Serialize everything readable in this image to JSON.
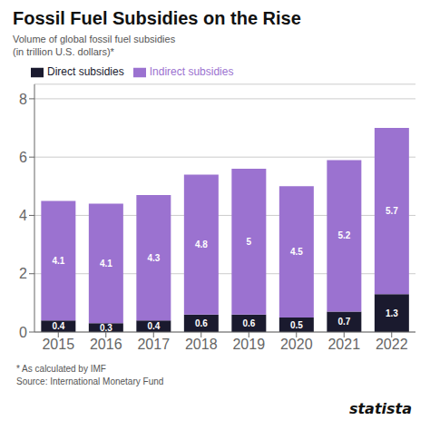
{
  "chart_data": {
    "type": "bar",
    "title": "Fossil Fuel Subsidies on the Rise",
    "subtitle": "Volume of global fossil fuel subsidies\n(in trillion U.S. dollars)*",
    "categories": [
      "2015",
      "2016",
      "2017",
      "2018",
      "2019",
      "2020",
      "2021",
      "2022"
    ],
    "series": [
      {
        "name": "Direct subsidies",
        "color": "#1a1a2e",
        "values": [
          0.4,
          0.3,
          0.4,
          0.6,
          0.6,
          0.5,
          0.7,
          1.3
        ]
      },
      {
        "name": "Indirect subsidies",
        "color": "#9b72d0",
        "values": [
          4.1,
          4.1,
          4.3,
          4.8,
          5.0,
          4.5,
          5.2,
          5.7
        ]
      }
    ],
    "ylim": [
      0,
      8.5
    ],
    "yticks": [
      0,
      2,
      4,
      6,
      8
    ],
    "stacked": true,
    "data_labels": true,
    "grid": true,
    "legend": "top",
    "annotations": [
      "* As calculated by IMF",
      "Source: International Monetary Fund",
      "statista"
    ]
  }
}
